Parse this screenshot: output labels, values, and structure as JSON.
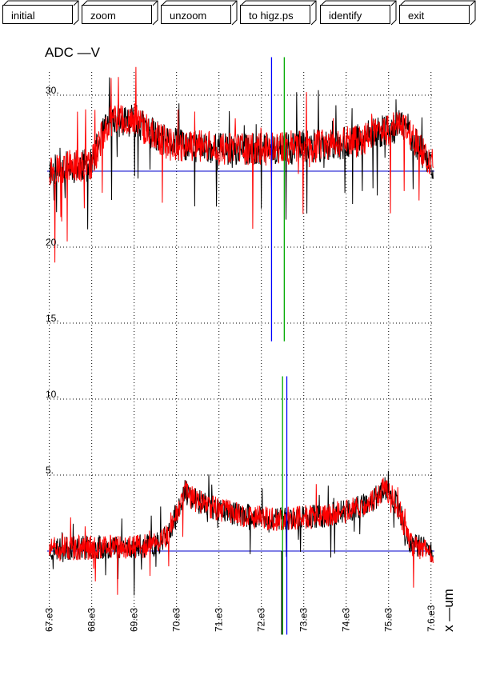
{
  "toolbar": {
    "buttons": [
      {
        "label": "initial"
      },
      {
        "label": "zoom"
      },
      {
        "label": "unzoom"
      },
      {
        "label": "to higz.ps"
      },
      {
        "label": "identify"
      },
      {
        "label": "exit"
      }
    ]
  },
  "chart_data": {
    "type": "line",
    "title": "ADC  —V",
    "xlabel": "x  —um",
    "x_ticks": [
      "67.e3",
      "68.e3",
      "69.e3",
      "70.e3",
      "71.e3",
      "72.e3",
      "73.e3",
      "74.e3",
      "75.e3",
      "7.6.e3"
    ],
    "x_tick_values": [
      67000,
      68000,
      69000,
      70000,
      71000,
      72000,
      73000,
      74000,
      75000,
      76000
    ],
    "y_ticks": [
      "5.",
      "10.",
      "15.",
      "20.",
      "30."
    ],
    "y_tick_values": [
      5,
      10,
      15,
      20,
      30
    ],
    "xlim": [
      66950,
      76080
    ],
    "ylim": [
      -3,
      34
    ],
    "grid": true,
    "series_colors": [
      "#000000",
      "#ff0000"
    ],
    "upper_band": {
      "baseline": 25,
      "profile": [
        [
          67000,
          25.1
        ],
        [
          67500,
          25.3
        ],
        [
          68000,
          25.4
        ],
        [
          68200,
          27.0
        ],
        [
          68400,
          28.2
        ],
        [
          69000,
          28.4
        ],
        [
          69400,
          27.5
        ],
        [
          69800,
          26.8
        ],
        [
          70500,
          26.6
        ],
        [
          71500,
          26.4
        ],
        [
          72500,
          26.5
        ],
        [
          73500,
          26.7
        ],
        [
          74300,
          27.0
        ],
        [
          75000,
          27.8
        ],
        [
          75400,
          28.0
        ],
        [
          75700,
          26.6
        ],
        [
          76000,
          25.5
        ]
      ]
    },
    "lower_band": {
      "baseline": 0,
      "profile": [
        [
          67000,
          0.1
        ],
        [
          67800,
          0.2
        ],
        [
          68500,
          0.3
        ],
        [
          69400,
          0.3
        ],
        [
          69800,
          1.0
        ],
        [
          70000,
          2.5
        ],
        [
          70200,
          3.9
        ],
        [
          70400,
          3.4
        ],
        [
          70800,
          2.9
        ],
        [
          71500,
          2.4
        ],
        [
          72200,
          2.1
        ],
        [
          72800,
          2.2
        ],
        [
          73400,
          2.3
        ],
        [
          74000,
          2.6
        ],
        [
          74600,
          3.2
        ],
        [
          74900,
          4.2
        ],
        [
          75100,
          3.6
        ],
        [
          75300,
          2.3
        ],
        [
          75500,
          0.5
        ],
        [
          76000,
          0.0
        ]
      ]
    },
    "markers": [
      {
        "color": "#0000ff",
        "x": 72240,
        "y_range": [
          13.8,
          32.5
        ]
      },
      {
        "color": "#00aa00",
        "x": 72540,
        "y_range": [
          13.8,
          32.5
        ]
      },
      {
        "color": "#00aa00",
        "x": 72500,
        "y_range": [
          -5.5,
          11.5
        ]
      },
      {
        "color": "#0000ff",
        "x": 72600,
        "y_range": [
          -5.5,
          11.5
        ]
      },
      {
        "color": "#000000",
        "x": 72480,
        "y_range": [
          -5.5,
          0
        ]
      }
    ]
  }
}
